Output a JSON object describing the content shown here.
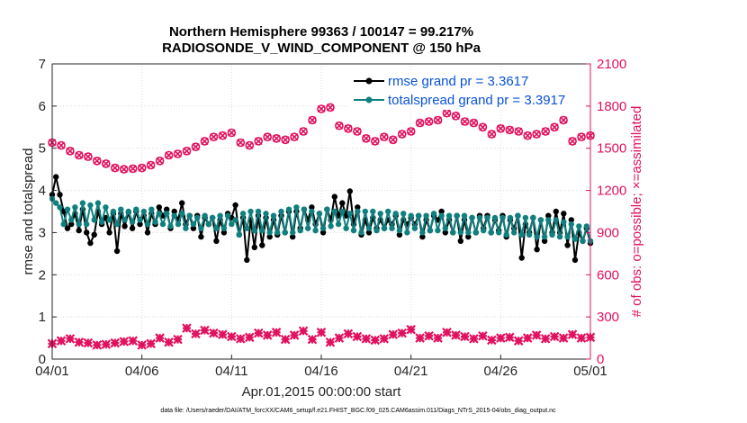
{
  "chart_data": {
    "type": "line",
    "title_line1": "Northern Hemisphere 99363 / 100147 = 99.217%",
    "title_line2": "RADIOSONDE_V_WIND_COMPONENT @ 150 hPa",
    "xlabel": "Apr.01,2015 00:00:00 start",
    "ylabel_left": "rmse and totalspread",
    "ylabel_right": "# of obs: o=possible; ×=assimilated",
    "footer": "data file: /Users/raeder/DAI/ATM_forcXX/CAM6_setup/f.e21.FHIST_BGC.f09_025.CAM6assim.011/Diags_NTrS_2015-04/obs_diag_output.nc",
    "xlim": [
      0,
      30
    ],
    "x_ticks": [
      0,
      5,
      10,
      15,
      20,
      25,
      30
    ],
    "x_tick_labels": [
      "04/01",
      "04/06",
      "04/11",
      "04/16",
      "04/21",
      "04/26",
      "05/01"
    ],
    "ylim_left": [
      0,
      7
    ],
    "y_ticks_left": [
      "0",
      "1",
      "2",
      "3",
      "4",
      "5",
      "6",
      "7"
    ],
    "ylim_right": [
      0,
      2100
    ],
    "y_ticks_right": [
      "0",
      "300",
      "600",
      "900",
      "1200",
      "1500",
      "1800",
      "2100"
    ],
    "grid": true,
    "legend_position": "top-right",
    "series": [
      {
        "name": "rmse grand pr = 3.3617",
        "axis": "left",
        "color": "#000000",
        "marker": "dot",
        "values": [
          3.9,
          4.32,
          3.9,
          3.5,
          3.1,
          3.2,
          3.45,
          3.05,
          3.55,
          3.0,
          2.75,
          2.95,
          3.5,
          3.2,
          3.35,
          3.0,
          3.45,
          2.56,
          3.45,
          3.15,
          3.48,
          3.1,
          3.5,
          3.2,
          3.4,
          3.0,
          3.45,
          3.2,
          3.6,
          3.4,
          3.55,
          3.1,
          3.5,
          3.3,
          3.7,
          3.2,
          3.4,
          3.1,
          3.4,
          2.9,
          3.35,
          3.2,
          3.35,
          2.8,
          3.3,
          3.0,
          3.45,
          3.35,
          3.65,
          2.95,
          3.35,
          2.35,
          3.3,
          2.65,
          3.4,
          2.7,
          3.35,
          2.9,
          3.3,
          2.95,
          3.4,
          3.0,
          3.5,
          2.9,
          3.5,
          3.1,
          3.55,
          3.3,
          3.6,
          3.2,
          3.45,
          3.0,
          3.55,
          3.3,
          3.85,
          3.4,
          3.7,
          3.4,
          3.98,
          3.2,
          3.6,
          2.95,
          3.3,
          3.0,
          3.35,
          3.1,
          3.3,
          3.1,
          3.3,
          3.2,
          3.4,
          2.95,
          3.3,
          3.2,
          3.35,
          3.2,
          3.4,
          2.9,
          3.3,
          3.05,
          3.4,
          3.3,
          3.5,
          3.0,
          3.3,
          3.0,
          3.4,
          2.8,
          3.3,
          2.9,
          3.35,
          3.0,
          3.4,
          3.1,
          3.4,
          3.0,
          3.3,
          3.05,
          3.4,
          2.9,
          3.3,
          3.1,
          3.4,
          2.4,
          3.2,
          3.0,
          3.35,
          2.6,
          3.3,
          2.8,
          3.4,
          3.0,
          3.5,
          3.0,
          3.45,
          2.7,
          3.3,
          2.35,
          3.0,
          2.8,
          3.1,
          2.75
        ]
      },
      {
        "name": "totalspread grand pr = 3.3917",
        "axis": "left",
        "color": "#10807f",
        "marker": "dot",
        "values": [
          3.8,
          3.7,
          3.6,
          3.2,
          3.55,
          3.3,
          3.6,
          3.2,
          3.7,
          3.2,
          3.65,
          3.3,
          3.7,
          3.25,
          3.6,
          3.3,
          3.5,
          3.2,
          3.55,
          3.3,
          3.5,
          3.25,
          3.55,
          3.3,
          3.5,
          3.2,
          3.55,
          3.25,
          3.45,
          3.2,
          3.45,
          3.15,
          3.4,
          3.2,
          3.45,
          3.1,
          3.4,
          3.2,
          3.35,
          3.1,
          3.4,
          3.2,
          3.35,
          3.1,
          3.4,
          3.1,
          3.4,
          3.2,
          3.3,
          2.95,
          3.45,
          3.1,
          3.5,
          3.05,
          3.5,
          3.05,
          3.45,
          3.0,
          3.4,
          3.0,
          3.5,
          3.0,
          3.55,
          3.0,
          3.6,
          3.05,
          3.55,
          3.1,
          3.5,
          3.05,
          3.45,
          3.1,
          3.55,
          3.15,
          3.5,
          3.2,
          3.5,
          3.1,
          3.45,
          3.05,
          3.5,
          3.0,
          3.5,
          3.1,
          3.5,
          3.05,
          3.45,
          3.1,
          3.5,
          3.1,
          3.45,
          3.05,
          3.45,
          3.0,
          3.4,
          3.1,
          3.4,
          3.0,
          3.4,
          3.05,
          3.45,
          3.05,
          3.4,
          3.1,
          3.4,
          3.0,
          3.4,
          3.0,
          3.4,
          3.0,
          3.35,
          3.0,
          3.35,
          3.05,
          3.35,
          3.0,
          3.35,
          3.0,
          3.35,
          2.95,
          3.35,
          3.0,
          3.4,
          2.95,
          3.35,
          2.95,
          3.35,
          2.9,
          3.3,
          2.9,
          3.3,
          2.95,
          3.3,
          2.9,
          3.25,
          2.9,
          3.2,
          2.85,
          3.15,
          2.8,
          3.15,
          2.8
        ]
      },
      {
        "name": "# obs possible",
        "axis": "right",
        "color": "#e0115f",
        "marker": "o",
        "x": [
          0,
          0.5,
          1,
          1.5,
          2,
          2.5,
          3,
          3.5,
          4,
          4.5,
          5,
          5.5,
          6,
          6.5,
          7,
          7.5,
          8,
          8.5,
          9,
          9.5,
          10,
          10.5,
          11,
          11.5,
          12,
          12.5,
          13,
          13.5,
          14,
          14.5,
          15,
          15.5,
          16,
          16.5,
          17,
          17.5,
          18,
          18.5,
          19,
          19.5,
          20,
          20.5,
          21,
          21.5,
          22,
          22.5,
          23,
          23.5,
          24,
          24.5,
          25,
          25.5,
          26,
          26.5,
          27,
          27.5,
          28,
          28.5,
          29,
          29.5,
          30
        ],
        "values": [
          1540,
          1520,
          1480,
          1450,
          1440,
          1410,
          1390,
          1360,
          1350,
          1355,
          1360,
          1380,
          1410,
          1450,
          1460,
          1480,
          1510,
          1550,
          1580,
          1590,
          1610,
          1540,
          1520,
          1550,
          1580,
          1570,
          1560,
          1580,
          1620,
          1700,
          1780,
          1790,
          1660,
          1640,
          1620,
          1570,
          1550,
          1580,
          1560,
          1600,
          1620,
          1680,
          1690,
          1700,
          1750,
          1730,
          1690,
          1680,
          1650,
          1600,
          1640,
          1630,
          1620,
          1590,
          1600,
          1620,
          1650,
          1700,
          1550,
          1580,
          1590
        ]
      },
      {
        "name": "# obs assimilated",
        "axis": "right",
        "color": "#e0115f",
        "marker": "x",
        "values": [
          110,
          130,
          145,
          120,
          115,
          100,
          105,
          115,
          125,
          130,
          100,
          110,
          150,
          120,
          140,
          220,
          180,
          205,
          185,
          175,
          160,
          145,
          155,
          185,
          170,
          190,
          140,
          170,
          200,
          140,
          190,
          120,
          150,
          180,
          160,
          145,
          135,
          145,
          175,
          185,
          210,
          150,
          165,
          150,
          190,
          170,
          160,
          145,
          165,
          135,
          150,
          155,
          130,
          150,
          170,
          145,
          160,
          150,
          175,
          150,
          155
        ]
      }
    ]
  }
}
